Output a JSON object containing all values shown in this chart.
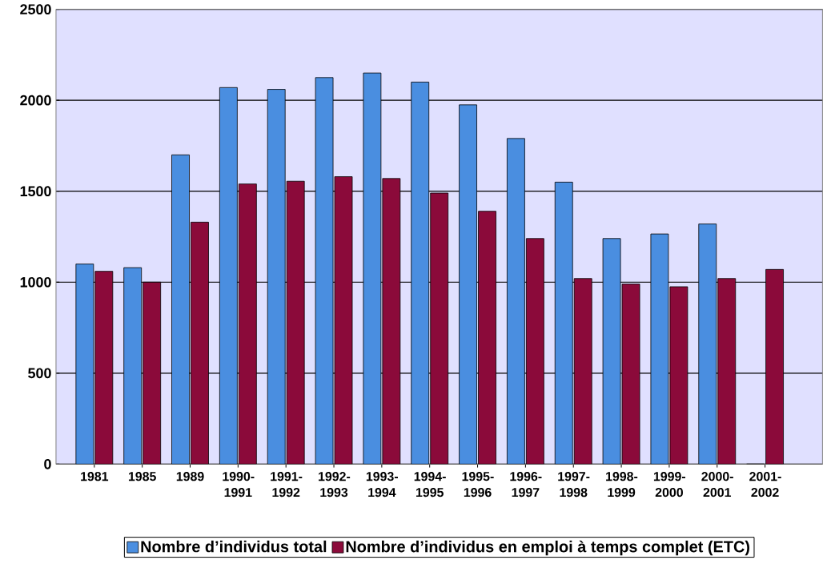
{
  "chart_data": {
    "type": "bar",
    "categories": [
      "1981",
      "1985",
      "1989",
      "1990-1991",
      "1991-1992",
      "1992-1993",
      "1993-1994",
      "1994-1995",
      "1995-1996",
      "1996-1997",
      "1997-1998",
      "1998-1999",
      "1999-2000",
      "2000-2001",
      "2001-2002"
    ],
    "series": [
      {
        "name": "Nombre d’individus total",
        "color": "#4a8ee0",
        "values": [
          1100,
          1080,
          1700,
          2070,
          2060,
          2125,
          2150,
          2100,
          1975,
          1790,
          1550,
          1240,
          1265,
          1320,
          0
        ]
      },
      {
        "name": "Nombre d’individus en emploi à temps complet (ETC)",
        "color": "#8b0a3a",
        "values": [
          1060,
          1000,
          1330,
          1540,
          1555,
          1580,
          1570,
          1490,
          1390,
          1240,
          1020,
          990,
          975,
          1020,
          1070
        ]
      }
    ],
    "ylim": [
      0,
      2500
    ],
    "yticks": [
      0,
      500,
      1000,
      1500,
      2000,
      2500
    ],
    "grid": "y",
    "legend": "bottom"
  }
}
